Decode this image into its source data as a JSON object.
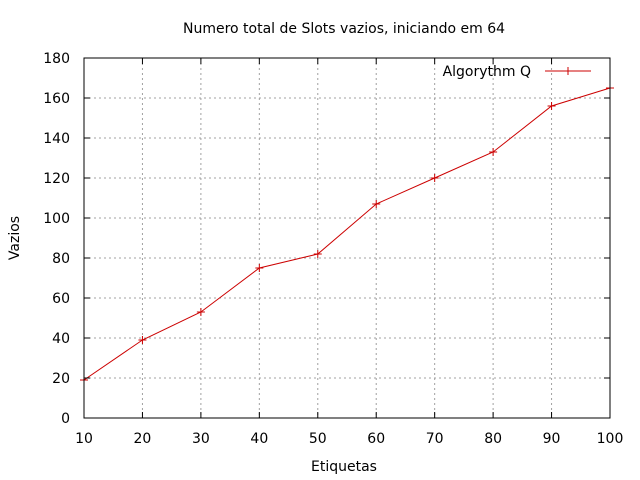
{
  "chart_data": {
    "type": "line",
    "title": "Numero total de Slots vazios, iniciando em 64",
    "xlabel": "Etiquetas",
    "ylabel": "Vazios",
    "xlim": [
      10,
      100
    ],
    "ylim": [
      0,
      180
    ],
    "xticks": [
      10,
      20,
      30,
      40,
      50,
      60,
      70,
      80,
      90,
      100
    ],
    "yticks": [
      0,
      20,
      40,
      60,
      80,
      100,
      120,
      140,
      160,
      180
    ],
    "grid": true,
    "legend_position": "top-right",
    "series": [
      {
        "name": "Algorythm Q",
        "color": "#cc0000",
        "marker": "plus",
        "x": [
          10,
          20,
          30,
          40,
          50,
          60,
          70,
          80,
          90,
          100
        ],
        "y": [
          19,
          39,
          53,
          75,
          82,
          107,
          120,
          133,
          156,
          165
        ]
      }
    ]
  }
}
